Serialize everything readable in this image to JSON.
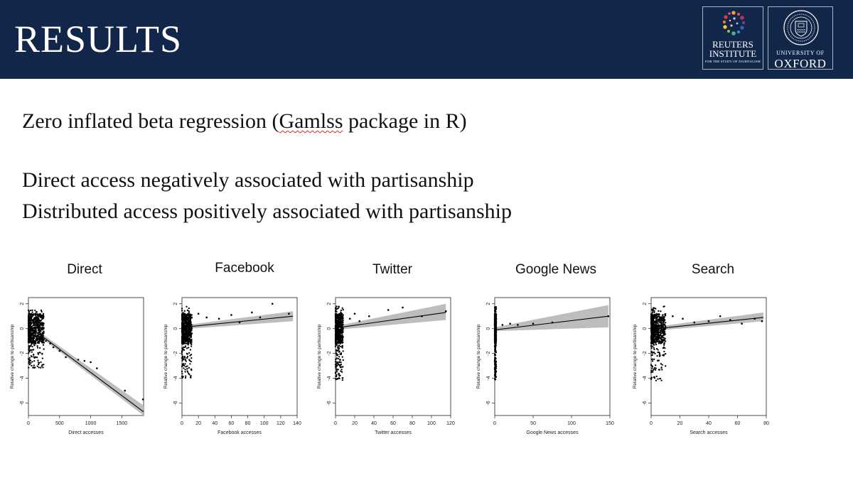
{
  "header": {
    "title": "RESULTS",
    "background": "#12264a",
    "logos": {
      "reuters": {
        "name_line1": "REUTERS",
        "name_line2": "INSTITUTE",
        "tagline": "FOR THE STUDY OF JOURNALISM"
      },
      "oxford": {
        "line1": "UNIVERSITY OF",
        "line2": "OXFORD",
        "seal_icon": "oxford-seal-icon"
      }
    }
  },
  "body": {
    "method_before": "Zero inflated beta regression (",
    "method_flagged": "Gamlss",
    "method_after": " package in R)",
    "finding_1": "Direct access negatively associated with partisanship",
    "finding_2": "Distributed access positively associated with partisanship"
  },
  "chart_data": [
    {
      "type": "scatter",
      "title": "Direct",
      "xlabel": "Direct accesses",
      "ylabel": "Relative change to partisanship",
      "xlim": [
        0,
        1850
      ],
      "ylim": [
        -7,
        2.5
      ],
      "xticks": [
        0,
        500,
        1000,
        1500
      ],
      "yticks": [
        2,
        0,
        -2,
        -4,
        -6
      ],
      "fit": {
        "x": [
          0,
          1850
        ],
        "y": [
          0.2,
          -6.7
        ]
      },
      "ci_band": {
        "x": [
          0,
          1850
        ],
        "lower": [
          0.05,
          -7.0
        ],
        "upper": [
          0.35,
          -6.2
        ]
      },
      "points": {
        "cluster_xmax": 250,
        "ymin": -3.2,
        "ymax": 1.5,
        "sparse": [
          [
            280,
            -1.0
          ],
          [
            350,
            -1.2
          ],
          [
            400,
            -1.5
          ],
          [
            500,
            -1.8
          ],
          [
            600,
            -2.3
          ],
          [
            800,
            -2.5
          ],
          [
            900,
            -2.6
          ],
          [
            1000,
            -2.7
          ],
          [
            1100,
            -3.2
          ],
          [
            1550,
            -5.0
          ],
          [
            1840,
            -5.7
          ]
        ]
      }
    },
    {
      "type": "scatter",
      "title": "Facebook",
      "xlabel": "Facebook accesses",
      "ylabel": "Relative change to partisanship",
      "xlim": [
        0,
        140
      ],
      "ylim": [
        -7,
        2.5
      ],
      "xticks": [
        0,
        20,
        40,
        60,
        80,
        100,
        120,
        140
      ],
      "yticks": [
        2,
        0,
        -2,
        -4,
        -6
      ],
      "fit": {
        "x": [
          0,
          135
        ],
        "y": [
          0.1,
          1.0
        ]
      },
      "ci_band": {
        "x": [
          0,
          135
        ],
        "lower": [
          -0.05,
          0.6
        ],
        "upper": [
          0.25,
          1.4
        ]
      },
      "points": {
        "cluster_xmax": 12,
        "ymin": -4.0,
        "ymax": 1.8,
        "sparse": [
          [
            20,
            1.2
          ],
          [
            30,
            0.9
          ],
          [
            45,
            0.8
          ],
          [
            60,
            1.1
          ],
          [
            70,
            0.5
          ],
          [
            85,
            1.3
          ],
          [
            95,
            0.9
          ],
          [
            110,
            2.0
          ],
          [
            130,
            1.2
          ]
        ]
      }
    },
    {
      "type": "scatter",
      "title": "Twitter",
      "xlabel": "Twitter accesses",
      "ylabel": "Relative change to partisanship",
      "xlim": [
        0,
        120
      ],
      "ylim": [
        -7,
        2.5
      ],
      "xticks": [
        0,
        20,
        40,
        60,
        80,
        100,
        120
      ],
      "yticks": [
        2,
        0,
        -2,
        -4,
        -6
      ],
      "fit": {
        "x": [
          0,
          115
        ],
        "y": [
          0.05,
          1.3
        ]
      },
      "ci_band": {
        "x": [
          0,
          115
        ],
        "lower": [
          -0.1,
          0.7
        ],
        "upper": [
          0.2,
          2.0
        ]
      },
      "points": {
        "cluster_xmax": 8,
        "ymin": -4.2,
        "ymax": 1.8,
        "sparse": [
          [
            15,
            0.8
          ],
          [
            20,
            1.2
          ],
          [
            25,
            0.6
          ],
          [
            35,
            1.0
          ],
          [
            55,
            1.5
          ],
          [
            70,
            1.7
          ],
          [
            90,
            1.0
          ],
          [
            115,
            1.4
          ]
        ]
      }
    },
    {
      "type": "scatter",
      "title": "Google News",
      "xlabel": "Google News accesses",
      "ylabel": "Relative change to partisanship",
      "xlim": [
        0,
        150
      ],
      "ylim": [
        -7,
        2.5
      ],
      "xticks": [
        0,
        50,
        100,
        150
      ],
      "yticks": [
        2,
        0,
        -2,
        -4,
        -6
      ],
      "fit": {
        "x": [
          0,
          148
        ],
        "y": [
          -0.1,
          1.0
        ]
      },
      "ci_band": {
        "x": [
          0,
          148
        ],
        "lower": [
          -0.2,
          0.1
        ],
        "upper": [
          0.1,
          1.9
        ]
      },
      "points": {
        "cluster_xmax": 2,
        "ymin": -4.2,
        "ymax": 1.8,
        "sparse": [
          [
            10,
            0.3
          ],
          [
            20,
            0.4
          ],
          [
            30,
            0.3
          ],
          [
            50,
            0.4
          ],
          [
            75,
            0.5
          ],
          [
            148,
            1.0
          ]
        ]
      }
    },
    {
      "type": "scatter",
      "title": "Search",
      "xlabel": "Search accesses",
      "ylabel": "Relative change to partisanship",
      "xlim": [
        0,
        80
      ],
      "ylim": [
        -7,
        2.5
      ],
      "xticks": [
        0,
        20,
        40,
        60,
        80
      ],
      "yticks": [
        2,
        0,
        -2,
        -4,
        -6
      ],
      "fit": {
        "x": [
          0,
          78
        ],
        "y": [
          -0.05,
          0.9
        ]
      },
      "ci_band": {
        "x": [
          0,
          78
        ],
        "lower": [
          -0.2,
          0.6
        ],
        "upper": [
          0.1,
          1.3
        ]
      },
      "points": {
        "cluster_xmax": 10,
        "ymin": -4.2,
        "ymax": 1.8,
        "sparse": [
          [
            15,
            1.0
          ],
          [
            22,
            0.8
          ],
          [
            30,
            0.5
          ],
          [
            40,
            0.6
          ],
          [
            48,
            1.0
          ],
          [
            55,
            0.7
          ],
          [
            63,
            0.4
          ],
          [
            72,
            0.8
          ],
          [
            77,
            0.6
          ]
        ]
      }
    }
  ]
}
